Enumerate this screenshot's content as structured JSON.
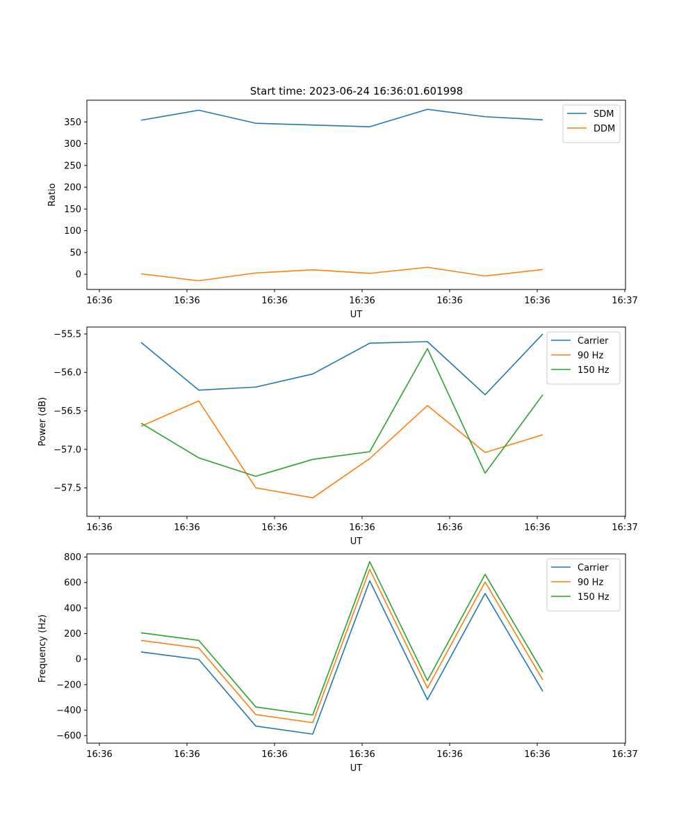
{
  "figure_title": "Start time: 2023-06-24 16:36:01.601998",
  "chart_data": [
    {
      "type": "line",
      "xlabel": "UT",
      "ylabel": "Ratio",
      "x_tick_labels": [
        "16:36",
        "16:36",
        "16:36",
        "16:36",
        "16:36",
        "16:36",
        "16:37"
      ],
      "y_ticks": [
        0,
        50,
        100,
        150,
        200,
        250,
        300,
        350
      ],
      "ylim": [
        -35,
        400
      ],
      "legend_position": "upper right",
      "series": [
        {
          "name": "SDM",
          "color": "#1f77b4",
          "values": [
            354,
            377,
            347,
            343,
            339,
            379,
            362,
            355
          ]
        },
        {
          "name": "DDM",
          "color": "#ff7f0e",
          "values": [
            1,
            -15,
            3,
            10,
            2,
            16,
            -4,
            11
          ]
        }
      ]
    },
    {
      "type": "line",
      "xlabel": "UT",
      "ylabel": "Power (dB)",
      "x_tick_labels": [
        "16:36",
        "16:36",
        "16:36",
        "16:36",
        "16:36",
        "16:36",
        "16:37"
      ],
      "y_ticks": [
        -57.5,
        -57.0,
        -56.5,
        -56.0,
        -55.5
      ],
      "y_tick_labels": [
        "−57.5",
        "−57.0",
        "−56.5",
        "−56.0",
        "−55.5"
      ],
      "ylim": [
        -57.87,
        -55.41
      ],
      "legend_position": "upper right",
      "series": [
        {
          "name": "Carrier",
          "color": "#1f77b4",
          "values": [
            -55.61,
            -56.23,
            -56.19,
            -56.02,
            -55.62,
            -55.6,
            -56.29,
            -55.5
          ]
        },
        {
          "name": "90 Hz",
          "color": "#ff7f0e",
          "values": [
            -56.7,
            -56.37,
            -57.5,
            -57.63,
            -57.12,
            -56.43,
            -57.04,
            -56.81
          ]
        },
        {
          "name": "150 Hz",
          "color": "#2ca02c",
          "values": [
            -56.66,
            -57.11,
            -57.35,
            -57.13,
            -57.03,
            -55.69,
            -57.31,
            -56.29
          ]
        }
      ]
    },
    {
      "type": "line",
      "xlabel": "UT",
      "ylabel": "Frequency (Hz)",
      "x_tick_labels": [
        "16:36",
        "16:36",
        "16:36",
        "16:36",
        "16:36",
        "16:36",
        "16:37"
      ],
      "y_ticks": [
        -600,
        -400,
        -200,
        0,
        200,
        400,
        600,
        800
      ],
      "y_tick_labels": [
        "−600",
        "−400",
        "−200",
        "0",
        "200",
        "400",
        "600",
        "800"
      ],
      "ylim": [
        -659,
        825
      ],
      "legend_position": "upper right",
      "series": [
        {
          "name": "Carrier",
          "color": "#1f77b4",
          "values": [
            56,
            -3,
            -525,
            -588,
            614,
            -318,
            515,
            -253
          ]
        },
        {
          "name": "90 Hz",
          "color": "#ff7f0e",
          "values": [
            146,
            87,
            -435,
            -498,
            704,
            -228,
            605,
            -163
          ]
        },
        {
          "name": "150 Hz",
          "color": "#2ca02c",
          "values": [
            206,
            147,
            -375,
            -438,
            764,
            -168,
            665,
            -103
          ]
        }
      ]
    }
  ]
}
